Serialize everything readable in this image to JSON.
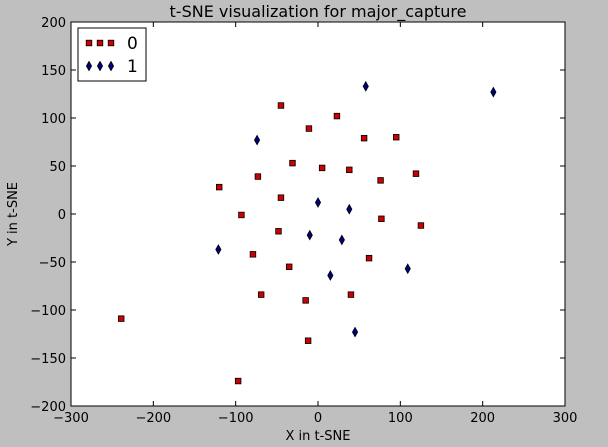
{
  "chart_data": {
    "type": "scatter",
    "title": "t-SNE visualization for major_capture",
    "xlabel": "X in t-SNE",
    "ylabel": "Y in t-SNE",
    "xlim": [
      -300,
      300
    ],
    "ylim": [
      -200,
      200
    ],
    "xticks": [
      -300,
      -200,
      -100,
      0,
      100,
      200,
      300
    ],
    "yticks": [
      -200,
      -150,
      -100,
      -50,
      0,
      50,
      100,
      150,
      200
    ],
    "xtick_labels": [
      "−300",
      "−200",
      "−100",
      "0",
      "100",
      "200",
      "300"
    ],
    "ytick_labels": [
      "−200",
      "−150",
      "−100",
      "−50",
      "0",
      "50",
      "100",
      "150",
      "200"
    ],
    "grid": false,
    "legend_position": "top-left",
    "series": [
      {
        "name": "0",
        "marker": "square",
        "color": "#cc0000",
        "edge_color": "#000000",
        "points": [
          [
            -45,
            113
          ],
          [
            -11,
            89
          ],
          [
            23,
            102
          ],
          [
            56,
            79
          ],
          [
            95,
            80
          ],
          [
            -31,
            53
          ],
          [
            5,
            48
          ],
          [
            38,
            46
          ],
          [
            -73,
            39
          ],
          [
            76,
            35
          ],
          [
            119,
            42
          ],
          [
            -120,
            28
          ],
          [
            -45,
            17
          ],
          [
            -93,
            -1
          ],
          [
            77,
            -5
          ],
          [
            125,
            -12
          ],
          [
            -48,
            -18
          ],
          [
            -79,
            -42
          ],
          [
            62,
            -46
          ],
          [
            -35,
            -55
          ],
          [
            -69,
            -84
          ],
          [
            40,
            -84
          ],
          [
            -15,
            -90
          ],
          [
            -239,
            -109
          ],
          [
            -12,
            -132
          ],
          [
            -97,
            -174
          ]
        ]
      },
      {
        "name": "1",
        "marker": "diamond",
        "color": "#000080",
        "edge_color": "#000000",
        "points": [
          [
            58,
            133
          ],
          [
            213,
            127
          ],
          [
            -74,
            77
          ],
          [
            0,
            12
          ],
          [
            38,
            5
          ],
          [
            -10,
            -22
          ],
          [
            29,
            -27
          ],
          [
            -121,
            -37
          ],
          [
            15,
            -64
          ],
          [
            109,
            -57
          ],
          [
            45,
            -123
          ]
        ]
      }
    ]
  }
}
